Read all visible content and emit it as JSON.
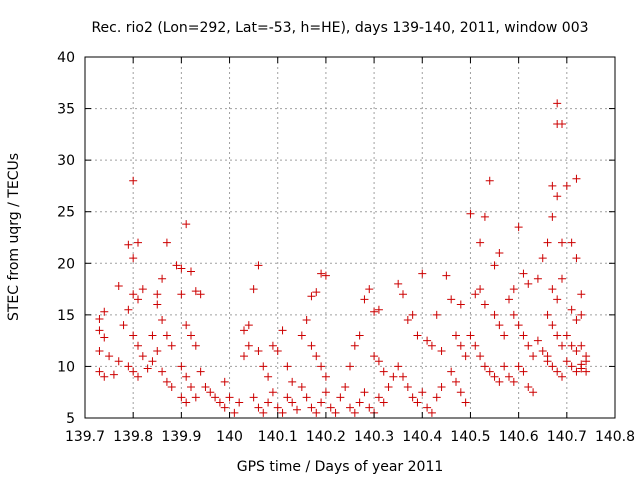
{
  "chart_data": {
    "type": "scatter",
    "title": "Rec. rio2 (Lon=292, Lat=-53, h=HE), days 139-140, 2011, window 003",
    "xlabel": "GPS time / Days of year 2011",
    "ylabel": "STEC from uqrg / TECUs",
    "xlim": [
      139.7,
      140.8
    ],
    "ylim": [
      5,
      40
    ],
    "x_ticks": [
      "139.7",
      "139.8",
      "139.9",
      "140",
      "140.1",
      "140.2",
      "140.3",
      "140.4",
      "140.5",
      "140.6",
      "140.7",
      "140.8"
    ],
    "y_ticks": [
      "5",
      "10",
      "15",
      "20",
      "25",
      "30",
      "35",
      "40"
    ],
    "grid": true,
    "marker": "+",
    "color": "#cc0000",
    "series": [
      {
        "values": [
          [
            139.73,
            14.6
          ],
          [
            139.74,
            15.3
          ],
          [
            139.73,
            13.5
          ],
          [
            139.74,
            12.8
          ],
          [
            139.73,
            11.5
          ],
          [
            139.75,
            11.0
          ],
          [
            139.73,
            9.5
          ],
          [
            139.74,
            9.0
          ],
          [
            139.76,
            9.2
          ],
          [
            139.77,
            10.5
          ],
          [
            139.77,
            17.8
          ],
          [
            139.79,
            21.8
          ],
          [
            139.8,
            28.0
          ],
          [
            139.8,
            20.5
          ],
          [
            139.81,
            22.0
          ],
          [
            139.8,
            17.0
          ],
          [
            139.81,
            16.5
          ],
          [
            139.82,
            17.5
          ],
          [
            139.79,
            15.5
          ],
          [
            139.78,
            14.0
          ],
          [
            139.8,
            13.0
          ],
          [
            139.81,
            12.0
          ],
          [
            139.82,
            11.0
          ],
          [
            139.79,
            10.0
          ],
          [
            139.8,
            9.5
          ],
          [
            139.81,
            9.0
          ],
          [
            139.83,
            9.8
          ],
          [
            139.84,
            10.5
          ],
          [
            139.84,
            13.0
          ],
          [
            139.85,
            16.0
          ],
          [
            139.85,
            17.0
          ],
          [
            139.86,
            18.5
          ],
          [
            139.87,
            22.0
          ],
          [
            139.86,
            14.5
          ],
          [
            139.87,
            13.0
          ],
          [
            139.88,
            12.0
          ],
          [
            139.85,
            11.5
          ],
          [
            139.86,
            9.5
          ],
          [
            139.87,
            8.5
          ],
          [
            139.88,
            8.0
          ],
          [
            139.89,
            19.8
          ],
          [
            139.9,
            19.5
          ],
          [
            139.91,
            23.8
          ],
          [
            139.9,
            17.0
          ],
          [
            139.92,
            19.2
          ],
          [
            139.93,
            17.3
          ],
          [
            139.94,
            17.0
          ],
          [
            139.91,
            14.0
          ],
          [
            139.92,
            13.0
          ],
          [
            139.93,
            12.0
          ],
          [
            139.9,
            10.0
          ],
          [
            139.91,
            9.0
          ],
          [
            139.92,
            8.0
          ],
          [
            139.9,
            7.0
          ],
          [
            139.91,
            6.5
          ],
          [
            139.93,
            7.0
          ],
          [
            139.94,
            9.5
          ],
          [
            139.95,
            8.0
          ],
          [
            139.96,
            7.5
          ],
          [
            139.97,
            7.0
          ],
          [
            139.98,
            6.5
          ],
          [
            139.99,
            8.5
          ],
          [
            139.99,
            6.0
          ],
          [
            140.0,
            7.0
          ],
          [
            140.01,
            5.5
          ],
          [
            140.02,
            6.5
          ],
          [
            140.03,
            11.0
          ],
          [
            140.04,
            12.0
          ],
          [
            140.04,
            14.0
          ],
          [
            140.03,
            13.5
          ],
          [
            140.05,
            17.5
          ],
          [
            140.06,
            19.8
          ],
          [
            140.06,
            11.5
          ],
          [
            140.07,
            10.0
          ],
          [
            140.08,
            9.0
          ],
          [
            140.09,
            12.0
          ],
          [
            140.1,
            11.5
          ],
          [
            140.11,
            13.5
          ],
          [
            140.12,
            10.0
          ],
          [
            140.13,
            8.5
          ],
          [
            140.05,
            7.0
          ],
          [
            140.06,
            6.0
          ],
          [
            140.07,
            5.5
          ],
          [
            140.08,
            6.5
          ],
          [
            140.09,
            7.5
          ],
          [
            140.1,
            6.0
          ],
          [
            140.11,
            5.5
          ],
          [
            140.12,
            7.0
          ],
          [
            140.13,
            6.5
          ],
          [
            140.14,
            5.8
          ],
          [
            140.15,
            13.0
          ],
          [
            140.16,
            14.5
          ],
          [
            140.17,
            16.8
          ],
          [
            140.18,
            17.2
          ],
          [
            140.19,
            19.0
          ],
          [
            140.2,
            18.8
          ],
          [
            140.17,
            12.0
          ],
          [
            140.18,
            11.0
          ],
          [
            140.19,
            10.0
          ],
          [
            140.2,
            9.0
          ],
          [
            140.15,
            8.0
          ],
          [
            140.16,
            7.0
          ],
          [
            140.17,
            6.0
          ],
          [
            140.18,
            5.5
          ],
          [
            140.19,
            6.5
          ],
          [
            140.2,
            7.5
          ],
          [
            140.21,
            6.0
          ],
          [
            140.22,
            5.5
          ],
          [
            140.23,
            7.0
          ],
          [
            140.24,
            8.0
          ],
          [
            140.25,
            10.0
          ],
          [
            140.26,
            12.0
          ],
          [
            140.27,
            13.0
          ],
          [
            140.28,
            16.5
          ],
          [
            140.29,
            17.5
          ],
          [
            140.3,
            15.3
          ],
          [
            140.31,
            15.5
          ],
          [
            140.3,
            11.0
          ],
          [
            140.31,
            10.5
          ],
          [
            140.32,
            9.5
          ],
          [
            140.25,
            6.0
          ],
          [
            140.26,
            5.5
          ],
          [
            140.27,
            6.5
          ],
          [
            140.28,
            7.5
          ],
          [
            140.29,
            6.0
          ],
          [
            140.3,
            5.5
          ],
          [
            140.31,
            7.0
          ],
          [
            140.32,
            6.5
          ],
          [
            140.33,
            8.0
          ],
          [
            140.34,
            9.0
          ],
          [
            140.35,
            18.0
          ],
          [
            140.36,
            17.0
          ],
          [
            140.37,
            14.5
          ],
          [
            140.38,
            15.0
          ],
          [
            140.39,
            13.0
          ],
          [
            140.4,
            19.0
          ],
          [
            140.41,
            12.5
          ],
          [
            140.42,
            12.0
          ],
          [
            140.43,
            15.0
          ],
          [
            140.44,
            11.5
          ],
          [
            140.35,
            10.0
          ],
          [
            140.36,
            9.0
          ],
          [
            140.37,
            8.0
          ],
          [
            140.38,
            7.0
          ],
          [
            140.39,
            6.5
          ],
          [
            140.4,
            7.5
          ],
          [
            140.41,
            6.0
          ],
          [
            140.42,
            5.5
          ],
          [
            140.43,
            7.0
          ],
          [
            140.44,
            8.0
          ],
          [
            140.45,
            18.8
          ],
          [
            140.46,
            16.5
          ],
          [
            140.48,
            16.0
          ],
          [
            140.47,
            13.0
          ],
          [
            140.48,
            12.0
          ],
          [
            140.49,
            11.0
          ],
          [
            140.46,
            9.5
          ],
          [
            140.47,
            8.5
          ],
          [
            140.48,
            7.5
          ],
          [
            140.49,
            6.5
          ],
          [
            140.5,
            24.8
          ],
          [
            140.52,
            22.0
          ],
          [
            140.53,
            24.5
          ],
          [
            140.51,
            17.0
          ],
          [
            140.52,
            17.5
          ],
          [
            140.53,
            16.0
          ],
          [
            140.5,
            13.0
          ],
          [
            140.51,
            12.0
          ],
          [
            140.52,
            11.0
          ],
          [
            140.53,
            10.0
          ],
          [
            140.54,
            28.0
          ],
          [
            140.55,
            19.8
          ],
          [
            140.56,
            21.0
          ],
          [
            140.55,
            15.0
          ],
          [
            140.56,
            14.0
          ],
          [
            140.57,
            13.0
          ],
          [
            140.54,
            9.5
          ],
          [
            140.55,
            9.0
          ],
          [
            140.56,
            8.5
          ],
          [
            140.57,
            10.0
          ],
          [
            140.58,
            16.5
          ],
          [
            140.59,
            17.5
          ],
          [
            140.6,
            23.5
          ],
          [
            140.61,
            19.0
          ],
          [
            140.62,
            18.0
          ],
          [
            140.59,
            15.0
          ],
          [
            140.6,
            14.0
          ],
          [
            140.61,
            13.0
          ],
          [
            140.62,
            12.0
          ],
          [
            140.63,
            11.0
          ],
          [
            140.58,
            9.0
          ],
          [
            140.59,
            8.5
          ],
          [
            140.6,
            10.0
          ],
          [
            140.61,
            9.5
          ],
          [
            140.62,
            8.0
          ],
          [
            140.63,
            7.5
          ],
          [
            140.64,
            12.5
          ],
          [
            140.65,
            11.5
          ],
          [
            140.66,
            10.5
          ],
          [
            140.64,
            18.5
          ],
          [
            140.65,
            20.5
          ],
          [
            140.66,
            22.0
          ],
          [
            140.67,
            24.5
          ],
          [
            140.67,
            27.5
          ],
          [
            140.68,
            35.5
          ],
          [
            140.68,
            33.5
          ],
          [
            140.69,
            33.5
          ],
          [
            140.68,
            26.5
          ],
          [
            140.69,
            22.0
          ],
          [
            140.67,
            17.5
          ],
          [
            140.68,
            16.5
          ],
          [
            140.69,
            18.5
          ],
          [
            140.66,
            15.0
          ],
          [
            140.67,
            14.0
          ],
          [
            140.68,
            13.0
          ],
          [
            140.69,
            12.0
          ],
          [
            140.66,
            11.0
          ],
          [
            140.67,
            10.0
          ],
          [
            140.68,
            9.5
          ],
          [
            140.69,
            9.0
          ],
          [
            140.7,
            27.5
          ],
          [
            140.72,
            28.2
          ],
          [
            140.71,
            22.0
          ],
          [
            140.72,
            20.5
          ],
          [
            140.73,
            17.0
          ],
          [
            140.71,
            15.5
          ],
          [
            140.72,
            14.5
          ],
          [
            140.73,
            15.0
          ],
          [
            140.7,
            13.0
          ],
          [
            140.71,
            12.0
          ],
          [
            140.72,
            11.5
          ],
          [
            140.73,
            12.0
          ],
          [
            140.7,
            10.5
          ],
          [
            140.71,
            10.0
          ],
          [
            140.72,
            9.5
          ],
          [
            140.73,
            9.8
          ],
          [
            140.74,
            9.5
          ],
          [
            140.74,
            10.5
          ],
          [
            140.74,
            11.0
          ],
          [
            140.73,
            10.2
          ]
        ]
      }
    ]
  }
}
